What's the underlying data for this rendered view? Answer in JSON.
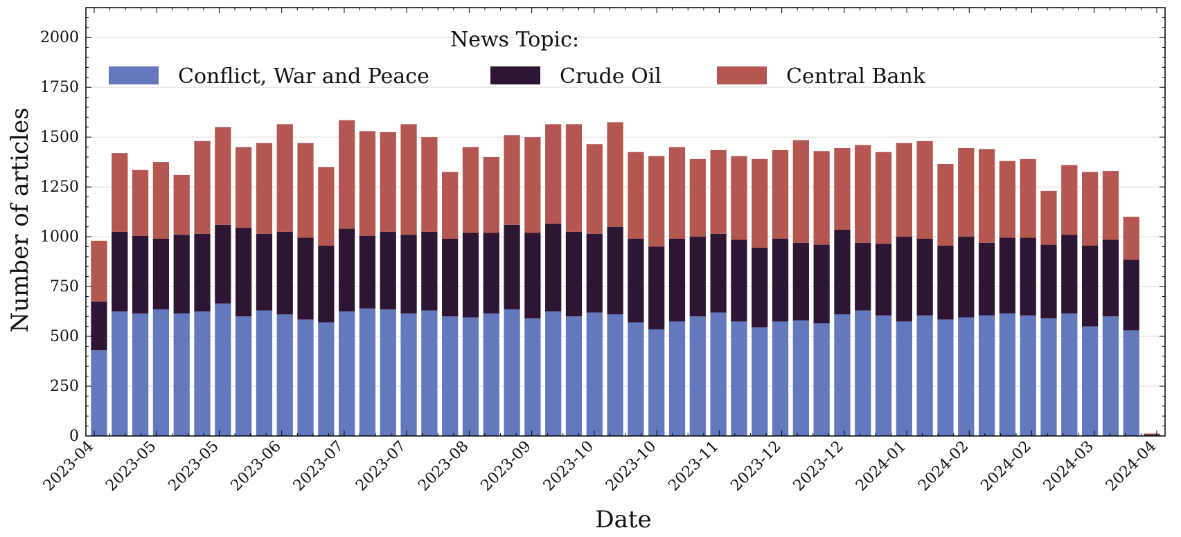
{
  "chart_data": {
    "type": "bar",
    "stacked": true,
    "xlabel": "Date",
    "ylabel": "Number of articles",
    "ylim": [
      0,
      2150
    ],
    "yticks": [
      0,
      250,
      500,
      750,
      1000,
      1250,
      1500,
      1750,
      2000
    ],
    "grid": "horizontal",
    "legend": {
      "title": "News Topic:",
      "placement": "top-left",
      "columns": 3
    },
    "x_tick_labels": [
      "2023-04",
      "2023-05",
      "2023-05",
      "2023-06",
      "2023-07",
      "2023-07",
      "2023-08",
      "2023-09",
      "2023-10",
      "2023-10",
      "2023-11",
      "2023-12",
      "2023-12",
      "2024-01",
      "2024-02",
      "2024-02",
      "2024-03",
      "2024-04"
    ],
    "series": [
      {
        "name": "Conflict, War and Peace",
        "color": "#6478bd",
        "values": [
          430,
          625,
          615,
          635,
          615,
          625,
          665,
          600,
          630,
          610,
          585,
          570,
          625,
          640,
          635,
          615,
          630,
          600,
          595,
          615,
          635,
          590,
          625,
          600,
          620,
          610,
          570,
          535,
          575,
          600,
          620,
          575,
          545,
          575,
          580,
          565,
          610,
          630,
          605,
          575,
          605,
          585,
          595,
          605,
          615,
          605,
          590,
          615,
          550,
          600,
          530,
          3
        ]
      },
      {
        "name": "Crude Oil",
        "color": "#2e1534",
        "values": [
          245,
          400,
          390,
          355,
          395,
          390,
          395,
          445,
          385,
          415,
          410,
          385,
          415,
          365,
          390,
          395,
          395,
          390,
          425,
          405,
          425,
          430,
          440,
          425,
          395,
          440,
          420,
          415,
          415,
          400,
          395,
          410,
          400,
          415,
          390,
          395,
          425,
          340,
          360,
          425,
          385,
          370,
          405,
          365,
          380,
          390,
          370,
          395,
          405,
          385,
          355,
          4
        ]
      },
      {
        "name": "Central Bank",
        "color": "#b35750",
        "values": [
          305,
          395,
          330,
          385,
          300,
          465,
          490,
          405,
          455,
          540,
          475,
          395,
          545,
          525,
          500,
          555,
          475,
          335,
          430,
          380,
          450,
          480,
          500,
          540,
          450,
          525,
          435,
          455,
          460,
          390,
          420,
          420,
          445,
          445,
          515,
          470,
          410,
          490,
          460,
          470,
          490,
          410,
          445,
          470,
          385,
          395,
          270,
          350,
          370,
          345,
          215,
          5
        ]
      }
    ]
  },
  "colors": {
    "grid": "#dddddd",
    "axis": "#000000",
    "background": "#ffffff"
  }
}
